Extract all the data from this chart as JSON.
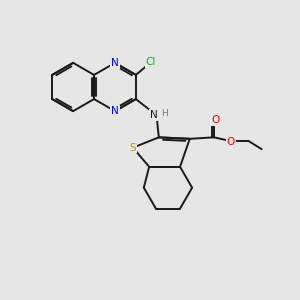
{
  "bg_color": "#e6e6e6",
  "bond_color": "#1a1a1a",
  "N_color": "#0000ff",
  "S_color": "#b8960a",
  "O_color": "#ff0000",
  "Cl_color": "#00bb00",
  "lw": 1.4,
  "figsize": [
    3.0,
    3.0
  ],
  "dpi": 100,
  "xlim": [
    0,
    10
  ],
  "ylim": [
    0,
    10
  ]
}
